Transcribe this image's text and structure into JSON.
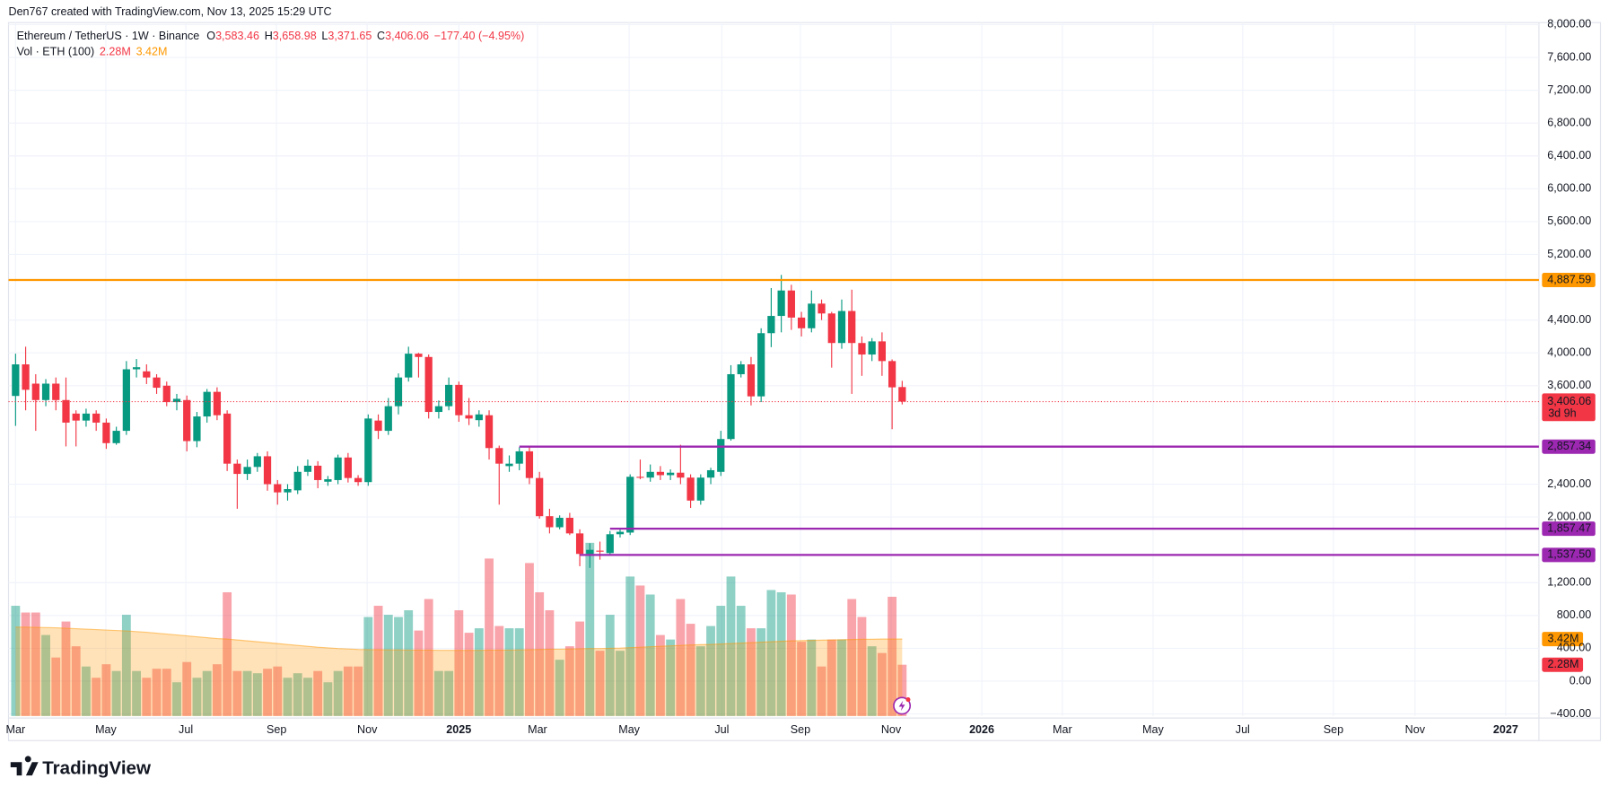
{
  "chart_data": {
    "type": "candlestick",
    "credit": "Den767 created with TradingView.com, Nov 13, 2025 15:29 UTC",
    "title": "Ethereum / TetherUS · 1W · Binance",
    "ohlc_legend": [
      {
        "key": "O",
        "value": "3,583.46"
      },
      {
        "key": "H",
        "value": "3,658.98"
      },
      {
        "key": "L",
        "value": "3,371.65"
      },
      {
        "key": "C",
        "value": "3,406.06"
      }
    ],
    "change": "−177.40 (−4.95%)",
    "volume_title": "Vol · ETH (100)",
    "volume_label": "2.28M",
    "volume_ma_label": "3.42M",
    "price_label": "3,406.06",
    "countdown": "3d 9h",
    "brand": "TradingView",
    "up_color": "#089981",
    "down_color": "#f23645",
    "volume_up_color": "rgba(8,153,129,0.45)",
    "volume_down_color": "rgba(242,54,69,0.45)",
    "volume_ma_color": "#ff9800",
    "grid": true,
    "xlim": [
      -0.7,
      151.2
    ],
    "ylim": [
      -425,
      8100
    ],
    "volume_lim": [
      0,
      31.1
    ],
    "xticks": [
      {
        "value": 0,
        "label": "Mar"
      },
      {
        "value": 8.96,
        "label": "May"
      },
      {
        "value": 16.9,
        "label": "Jul"
      },
      {
        "value": 25.9,
        "label": "Sep"
      },
      {
        "value": 34.9,
        "label": "Nov"
      },
      {
        "value": 43.99,
        "label": "2025"
      },
      {
        "value": 51.8,
        "label": "Mar"
      },
      {
        "value": 60.9,
        "label": "May"
      },
      {
        "value": 70.1,
        "label": "Jul"
      },
      {
        "value": 77.9,
        "label": "Sep"
      },
      {
        "value": 86.9,
        "label": "Nov"
      },
      {
        "value": 95.9,
        "label": "2026"
      },
      {
        "value": 103.9,
        "label": "Mar"
      },
      {
        "value": 112.9,
        "label": "May"
      },
      {
        "value": 121.8,
        "label": "Jul"
      },
      {
        "value": 130.8,
        "label": "Sep"
      },
      {
        "value": 138.9,
        "label": "Nov"
      },
      {
        "value": 147.9,
        "label": "2027"
      }
    ],
    "yticks": [
      {
        "value": -400,
        "label": "−400.00"
      },
      {
        "value": 0,
        "label": "0.00"
      },
      {
        "value": 400,
        "label": "400.00"
      },
      {
        "value": 800,
        "label": "800.00"
      },
      {
        "value": 1200,
        "label": "1,200.00"
      },
      {
        "value": 2000,
        "label": "2,000.00"
      },
      {
        "value": 2400,
        "label": "2,400.00"
      },
      {
        "value": 3600,
        "label": "3,600.00"
      },
      {
        "value": 4000,
        "label": "4,000.00"
      },
      {
        "value": 4400,
        "label": "4,400.00"
      },
      {
        "value": 5200,
        "label": "5,200.00"
      },
      {
        "value": 5600,
        "label": "5,600.00"
      },
      {
        "value": 6000,
        "label": "6,000.00"
      },
      {
        "value": 6400,
        "label": "6,400.00"
      },
      {
        "value": 6800,
        "label": "6,800.00"
      },
      {
        "value": 7200,
        "label": "7,200.00"
      },
      {
        "value": 7600,
        "label": "7,600.00"
      },
      {
        "value": 8000,
        "label": "8,000.00"
      }
    ],
    "levels": [
      {
        "value": 4887.59,
        "label": "4,887.59",
        "color": "#ff9800",
        "start": -0.7
      },
      {
        "value": 2857.34,
        "label": "2,857.34",
        "color": "#9c27b0",
        "start": 50
      },
      {
        "value": 1857.47,
        "label": "1,857.47",
        "color": "#9c27b0",
        "start": 59
      },
      {
        "value": 1537.5,
        "label": "1,537.50",
        "color": "#9c27b0",
        "start": 56
      }
    ],
    "open": [
      3475,
      3860,
      3625,
      3425,
      3625,
      3425,
      3260,
      3175,
      3260,
      3150,
      2900,
      3050,
      3800,
      3775,
      3700,
      3600,
      3400,
      3425,
      2925,
      3225,
      3525,
      3260,
      2650,
      2525,
      2610,
      2740,
      2400,
      2300,
      2325,
      2550,
      2625,
      2430,
      2450,
      2725,
      2475,
      2425,
      3175,
      3050,
      3350,
      3700,
      3990,
      3950,
      3280,
      3350,
      3610,
      3240,
      3180,
      3240,
      2840,
      2620,
      2650,
      2800,
      2475,
      2010,
      1875,
      1990,
      1800,
      1550,
      1590,
      1560,
      1790,
      1810,
      2490,
      2480,
      2550,
      2510,
      2540,
      2480,
      2200,
      2480,
      2550,
      2950,
      3740,
      3860,
      3470,
      4240,
      4450,
      4760,
      4430,
      4300,
      4600,
      4480,
      4120,
      4510,
      4120,
      3980,
      4140,
      3900,
      3583.46
    ],
    "high": [
      3990,
      4075,
      3740,
      3680,
      3700,
      3700,
      3300,
      3320,
      3300,
      3200,
      3100,
      3900,
      3925,
      3860,
      3740,
      3650,
      3500,
      3480,
      3280,
      3560,
      3580,
      3300,
      2700,
      2700,
      2780,
      2800,
      2450,
      2400,
      2620,
      2700,
      2680,
      2500,
      2760,
      2780,
      2510,
      3250,
      3250,
      3450,
      3750,
      4075,
      4000,
      3980,
      3420,
      3700,
      3650,
      3450,
      3300,
      3300,
      2870,
      2750,
      2850,
      2850,
      2550,
      2100,
      2020,
      2050,
      1850,
      1680,
      1700,
      1830,
      1860,
      2520,
      2700,
      2640,
      2620,
      2580,
      2880,
      2520,
      2520,
      2600,
      3050,
      3850,
      3900,
      3950,
      4300,
      4790,
      4950,
      4830,
      4500,
      4760,
      4650,
      4500,
      4650,
      4770,
      4200,
      4180,
      4250,
      3920,
      3658.98
    ],
    "low": [
      3110,
      3300,
      3050,
      3350,
      3300,
      2860,
      2860,
      3100,
      3050,
      2830,
      2880,
      3000,
      3700,
      3620,
      3500,
      3350,
      3300,
      2800,
      2850,
      3150,
      3180,
      2560,
      2100,
      2450,
      2550,
      2320,
      2150,
      2200,
      2280,
      2500,
      2350,
      2380,
      2400,
      2420,
      2380,
      2380,
      2950,
      3000,
      3250,
      3650,
      3700,
      3200,
      3200,
      3300,
      3160,
      3120,
      3100,
      2700,
      2150,
      2550,
      2570,
      2400,
      1980,
      1800,
      1850,
      1780,
      1400,
      1380,
      1480,
      1530,
      1750,
      1780,
      2460,
      2430,
      2450,
      2450,
      2400,
      2110,
      2150,
      2400,
      2500,
      2930,
      3700,
      3360,
      3400,
      4070,
      4250,
      4280,
      4200,
      4250,
      4400,
      3820,
      4050,
      3500,
      3720,
      3900,
      3720,
      3070,
      3371.65
    ],
    "close": [
      3860,
      3550,
      3425,
      3625,
      3425,
      3150,
      3175,
      3260,
      3150,
      2900,
      3050,
      3800,
      3825,
      3700,
      3575,
      3400,
      3440,
      2925,
      3225,
      3525,
      3240,
      2650,
      2525,
      2610,
      2740,
      2400,
      2300,
      2340,
      2550,
      2625,
      2450,
      2460,
      2725,
      2475,
      2425,
      3200,
      3050,
      3350,
      3700,
      3990,
      3950,
      3280,
      3350,
      3610,
      3240,
      3200,
      3250,
      2840,
      2650,
      2650,
      2800,
      2475,
      2010,
      1875,
      1990,
      1800,
      1550,
      1600,
      1580,
      1790,
      1820,
      2490,
      2480,
      2550,
      2510,
      2540,
      2480,
      2200,
      2480,
      2570,
      2950,
      3740,
      3860,
      3470,
      4240,
      4450,
      4760,
      4430,
      4300,
      4600,
      4480,
      4120,
      4510,
      4120,
      3980,
      4140,
      3900,
      3580,
      3406.06
    ],
    "volume": [
      4.9,
      4.6,
      4.6,
      3.6,
      2.6,
      4.2,
      3.1,
      2.2,
      1.7,
      2.3,
      2.0,
      4.5,
      2.0,
      1.7,
      2.1,
      2.1,
      1.5,
      2.4,
      1.7,
      2.0,
      2.3,
      5.5,
      2.0,
      2.0,
      1.9,
      2.1,
      2.2,
      1.7,
      1.9,
      1.7,
      2.0,
      1.5,
      2.0,
      2.2,
      2.2,
      4.4,
      4.9,
      4.5,
      4.4,
      4.7,
      3.8,
      5.2,
      2.0,
      2.0,
      4.7,
      3.7,
      3.9,
      7.0,
      4.0,
      3.9,
      3.9,
      6.8,
      5.5,
      4.7,
      2.5,
      3.1,
      4.2,
      7.7,
      2.9,
      4.5,
      2.9,
      6.2,
      5.8,
      5.4,
      3.6,
      3.4,
      5.2,
      4.1,
      3.1,
      4.0,
      4.9,
      6.2,
      4.9,
      3.9,
      3.9,
      5.6,
      5.5,
      5.4,
      3.3,
      3.4,
      2.2,
      3.4,
      3.4,
      5.2,
      4.4,
      3.1,
      2.8,
      5.3,
      2.28
    ],
    "volume_ma": [
      3.95,
      3.95,
      3.94,
      3.93,
      3.92,
      3.9,
      3.88,
      3.86,
      3.84,
      3.82,
      3.8,
      3.78,
      3.75,
      3.72,
      3.68,
      3.64,
      3.6,
      3.56,
      3.52,
      3.48,
      3.44,
      3.42,
      3.38,
      3.34,
      3.3,
      3.26,
      3.22,
      3.18,
      3.14,
      3.1,
      3.06,
      3.03,
      3.0,
      2.98,
      2.96,
      2.95,
      2.95,
      2.94,
      2.94,
      2.93,
      2.93,
      2.93,
      2.92,
      2.92,
      2.92,
      2.92,
      2.92,
      2.93,
      2.93,
      2.93,
      2.94,
      2.95,
      2.96,
      2.97,
      2.97,
      2.98,
      2.99,
      3.0,
      3.0,
      3.01,
      3.02,
      3.04,
      3.06,
      3.08,
      3.1,
      3.12,
      3.14,
      3.16,
      3.17,
      3.18,
      3.2,
      3.22,
      3.24,
      3.26,
      3.28,
      3.3,
      3.32,
      3.34,
      3.35,
      3.36,
      3.37,
      3.38,
      3.39,
      3.4,
      3.41,
      3.41,
      3.42,
      3.42,
      3.42
    ]
  }
}
